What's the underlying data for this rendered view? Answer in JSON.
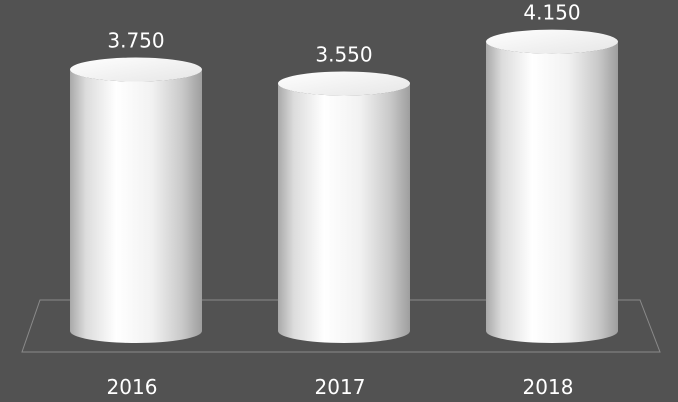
{
  "chart_data": {
    "type": "bar",
    "style": "3d-cylinder",
    "categories": [
      "2016",
      "2017",
      "2018"
    ],
    "values": [
      3750,
      3550,
      4150
    ],
    "value_labels": [
      "3.750",
      "3.550",
      "4.150"
    ],
    "title": "",
    "xlabel": "",
    "ylabel": "",
    "ylim": [
      0,
      4500
    ],
    "grid": false,
    "legend": "none"
  },
  "colors": {
    "background": "#525252",
    "cylinder_light": "#ffffff",
    "cylinder_dark": "#a8a8a8",
    "floor_outline": "#8a8a8a",
    "text": "#ffffff"
  }
}
